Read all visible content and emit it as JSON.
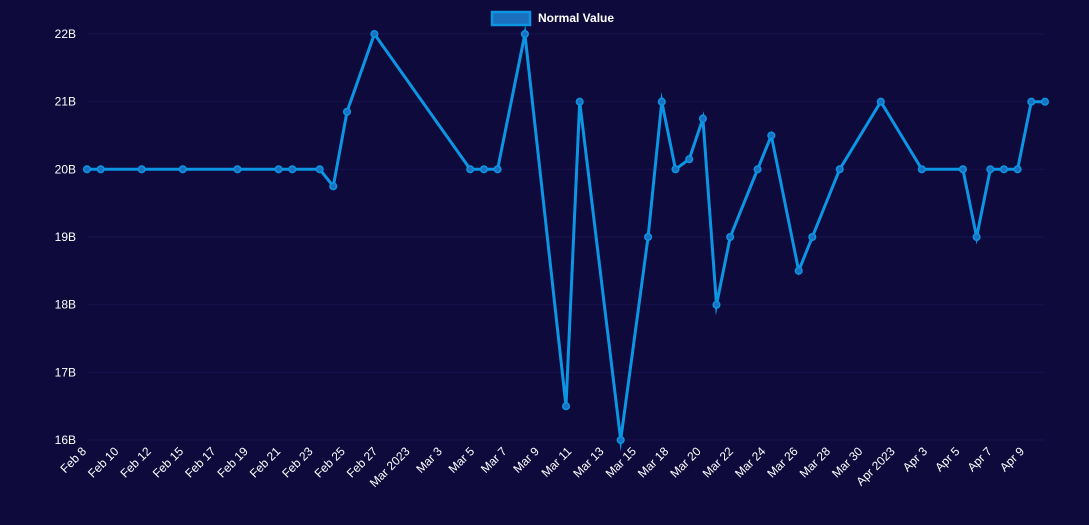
{
  "chart_data": {
    "type": "line",
    "title": "",
    "xlabel": "",
    "ylabel": "",
    "ylim": [
      16,
      22
    ],
    "y_unit_suffix": "B",
    "y_ticks": [
      "16B",
      "17B",
      "18B",
      "19B",
      "20B",
      "21B",
      "22B"
    ],
    "x_ticks": [
      "Feb 8",
      "Feb 10",
      "Feb 12",
      "Feb 15",
      "Feb 17",
      "Feb 19",
      "Feb 21",
      "Feb 23",
      "Feb 25",
      "Feb 27",
      "Mar 2023",
      "Mar 3",
      "Mar 5",
      "Mar 7",
      "Mar 9",
      "Mar 11",
      "Mar 13",
      "Mar 15",
      "Mar 18",
      "Mar 20",
      "Mar 22",
      "Mar 24",
      "Mar 26",
      "Mar 28",
      "Mar 30",
      "Apr 2023",
      "Apr 3",
      "Apr 5",
      "Apr 7",
      "Apr 9"
    ],
    "legend": {
      "position": "top-center",
      "label": "Normal Value"
    },
    "colors": {
      "line": "#0c95e3",
      "legend_fill": "#1a6fbf",
      "legend_border": "#0c95e3",
      "background": "#0f0a3c"
    },
    "series": [
      {
        "name": "Normal Value",
        "x": [
          0,
          1,
          4,
          7,
          11,
          14,
          15,
          17,
          18,
          19,
          21,
          28,
          29,
          30,
          32,
          35,
          36,
          39,
          41,
          42,
          43,
          44,
          45,
          46,
          47,
          49,
          50,
          52,
          53,
          55,
          58,
          61,
          64,
          65,
          66,
          67,
          68,
          69,
          70
        ],
        "y": [
          20,
          20,
          20,
          20,
          20,
          20,
          20,
          20,
          19.75,
          20.85,
          22,
          20,
          20,
          20,
          22,
          16.5,
          21,
          16,
          19,
          21,
          20,
          20.15,
          20.75,
          18,
          19,
          20,
          20.5,
          18.5,
          19,
          20,
          21,
          20,
          20,
          19,
          20,
          20,
          20,
          21,
          21
        ]
      }
    ]
  }
}
